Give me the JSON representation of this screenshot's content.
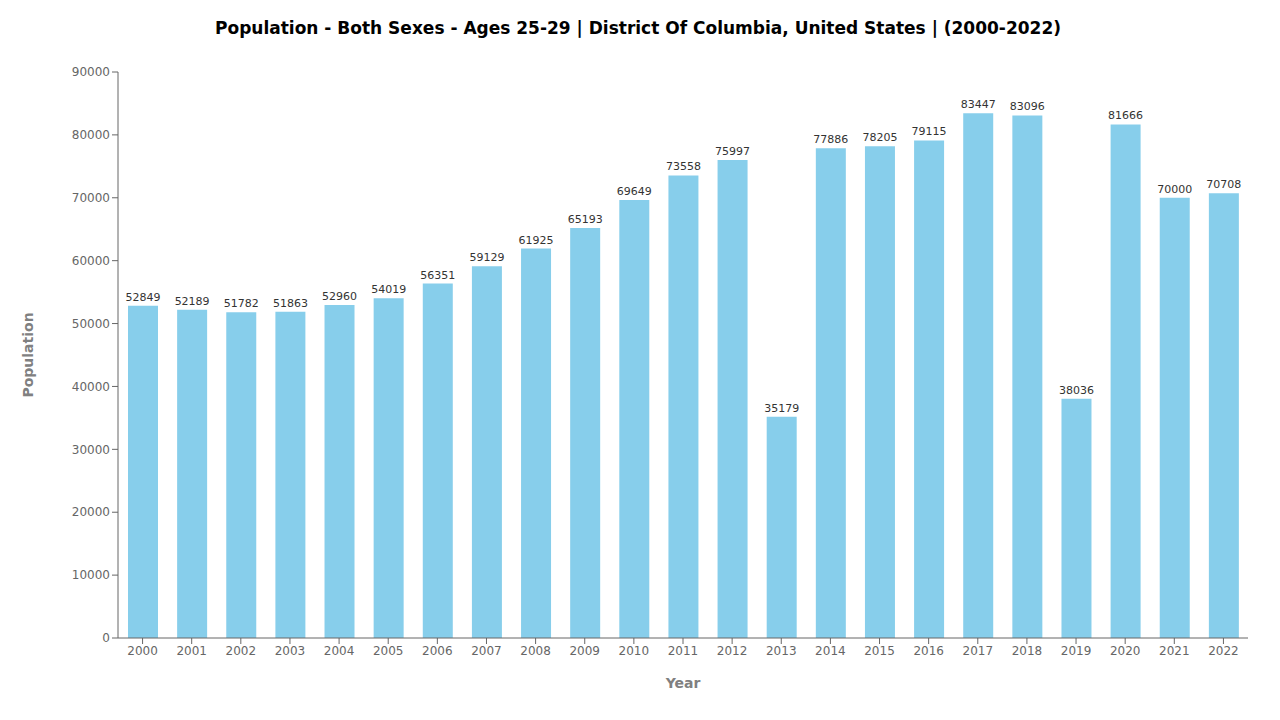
{
  "chart_data": {
    "type": "bar",
    "title": "Population - Both Sexes - Ages 25-29 | District Of Columbia, United States |  (2000-2022)",
    "xlabel": "Year",
    "ylabel": "Population",
    "categories": [
      "2000",
      "2001",
      "2002",
      "2003",
      "2004",
      "2005",
      "2006",
      "2007",
      "2008",
      "2009",
      "2010",
      "2011",
      "2012",
      "2013",
      "2014",
      "2015",
      "2016",
      "2017",
      "2018",
      "2019",
      "2020",
      "2021",
      "2022"
    ],
    "values": [
      52849,
      52189,
      51782,
      51863,
      52960,
      54019,
      56351,
      59129,
      61925,
      65193,
      69649,
      73558,
      75997,
      35179,
      77886,
      78205,
      79115,
      83447,
      83096,
      38036,
      81666,
      70000,
      70708
    ],
    "color": "#87ceeb",
    "ylim": [
      0,
      90000
    ],
    "yticks": [
      0,
      10000,
      20000,
      30000,
      40000,
      50000,
      60000,
      70000,
      80000,
      90000
    ],
    "grid": false,
    "data_labels": true
  }
}
